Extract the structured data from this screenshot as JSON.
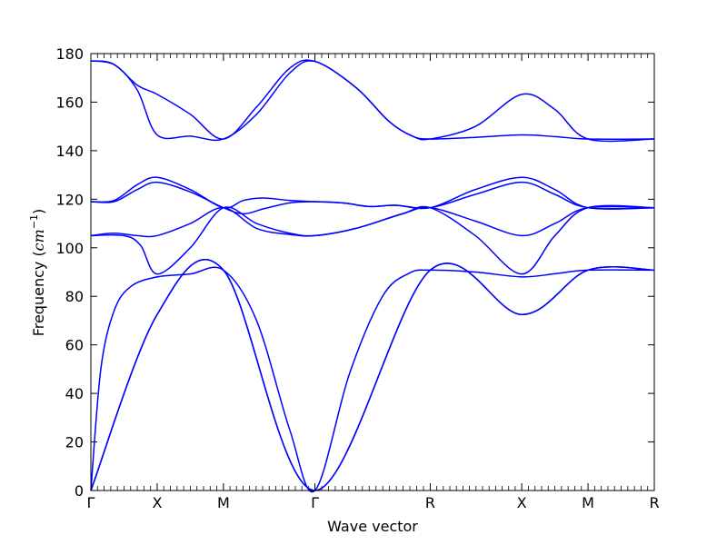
{
  "chart_data": {
    "type": "line",
    "title": "",
    "xlabel": "Wave vector",
    "ylabel": {
      "prefix": "Frequency (",
      "math": "cm",
      "exponent": "−1",
      "suffix": ")"
    },
    "ylim": [
      0,
      180
    ],
    "yticks": [
      0,
      20,
      40,
      60,
      80,
      100,
      120,
      140,
      160,
      180
    ],
    "xlim": [
      0,
      8.5
    ],
    "grid": false,
    "line_color": "#0000ff",
    "high_symmetry_points": [
      {
        "label": "Γ",
        "x": 0
      },
      {
        "label": "X",
        "x": 1
      },
      {
        "label": "M",
        "x": 2
      },
      {
        "label": "Γ",
        "x": 3.38
      },
      {
        "label": "R",
        "x": 5.12
      },
      {
        "label": "X",
        "x": 6.5
      },
      {
        "label": "M",
        "x": 7.5
      },
      {
        "label": "R",
        "x": 8.5
      }
    ],
    "series": [
      {
        "x": [
          0,
          1,
          2,
          3.38,
          5.12,
          6.5,
          7.5,
          8.5
        ],
        "values": [
          0,
          72.5,
          90.8,
          0,
          90.8,
          72.5,
          90.8,
          90.8
        ]
      },
      {
        "x": [
          0,
          1,
          2,
          3.38,
          5.12,
          6.5,
          7.5,
          8.5
        ],
        "values": [
          0,
          72.5,
          90.8,
          0,
          90.8,
          72.5,
          90.8,
          90.8
        ]
      },
      {
        "x": [
          0,
          0.15,
          0.35,
          0.6,
          1,
          1.5,
          2,
          2.5,
          3,
          3.38,
          3.9,
          4.4,
          4.8,
          5.12,
          5.8,
          6.5,
          7.0,
          7.5,
          8.5
        ],
        "values": [
          0,
          50,
          74,
          84,
          88,
          89.2,
          90.8,
          70,
          25,
          0,
          48,
          80,
          89.5,
          90.8,
          90,
          88,
          89.3,
          90.8,
          90.8
        ]
      },
      {
        "x": [
          0,
          0.5,
          0.75,
          1,
          1.5,
          2,
          2.5,
          3,
          3.38,
          4.0,
          4.7,
          5.12,
          5.8,
          6.5,
          7.0,
          7.5,
          8.5
        ],
        "values": [
          105,
          105,
          101,
          89.2,
          100,
          116.5,
          110,
          106,
          105,
          108,
          114,
          116.5,
          105,
          89.2,
          105,
          116.5,
          116.5
        ]
      },
      {
        "x": [
          0,
          0.35,
          0.7,
          1,
          1.5,
          2,
          2.5,
          3,
          3.38,
          4.0,
          4.7,
          5.12,
          5.8,
          6.5,
          7.0,
          7.5,
          8.5
        ],
        "values": [
          105,
          106,
          105,
          105,
          110,
          116.5,
          108,
          105.5,
          105,
          108,
          114,
          116.5,
          111,
          105,
          110,
          116.5,
          116.5
        ]
      },
      {
        "x": [
          0,
          0.35,
          0.7,
          1,
          1.5,
          2,
          2.3,
          2.6,
          3,
          3.38,
          3.8,
          4.2,
          4.6,
          5.12,
          5.8,
          6.5,
          7.0,
          7.5,
          8.5
        ],
        "values": [
          119,
          119,
          124,
          127,
          123,
          116.5,
          114,
          116,
          118.5,
          119,
          118.5,
          117,
          117.5,
          116.5,
          122,
          127,
          122,
          116.5,
          116.5
        ]
      },
      {
        "x": [
          0,
          0.35,
          0.7,
          1,
          1.5,
          2,
          2.3,
          2.6,
          3,
          3.38,
          3.8,
          4.2,
          4.6,
          5.12,
          5.8,
          6.5,
          7.0,
          7.5,
          8.5
        ],
        "values": [
          119,
          119.5,
          126,
          129,
          124,
          116.5,
          119.5,
          120.5,
          119.5,
          119,
          118.5,
          117,
          117.5,
          116.5,
          124,
          129,
          124,
          116.5,
          116.5
        ]
      },
      {
        "x": [
          0,
          0.35,
          0.7,
          1,
          1.5,
          2,
          2.5,
          3,
          3.38,
          4.0,
          4.5,
          4.85,
          5.12,
          5.8,
          6.5,
          7.0,
          7.5,
          8.5
        ],
        "values": [
          177,
          175.5,
          165,
          146.5,
          146,
          144.8,
          155,
          172,
          176.8,
          166,
          152,
          146,
          144.8,
          145.5,
          146.5,
          145.8,
          144.8,
          144.8
        ]
      },
      {
        "x": [
          0,
          0.35,
          0.7,
          1,
          1.5,
          2,
          2.5,
          3,
          3.38,
          4.0,
          4.5,
          4.85,
          5.12,
          5.8,
          6.5,
          7.0,
          7.5,
          8.5
        ],
        "values": [
          177,
          175.5,
          167,
          163.2,
          155,
          144.8,
          158,
          174,
          176.8,
          166,
          152,
          146,
          144.8,
          150,
          163.2,
          157,
          144.8,
          144.8
        ]
      }
    ]
  }
}
